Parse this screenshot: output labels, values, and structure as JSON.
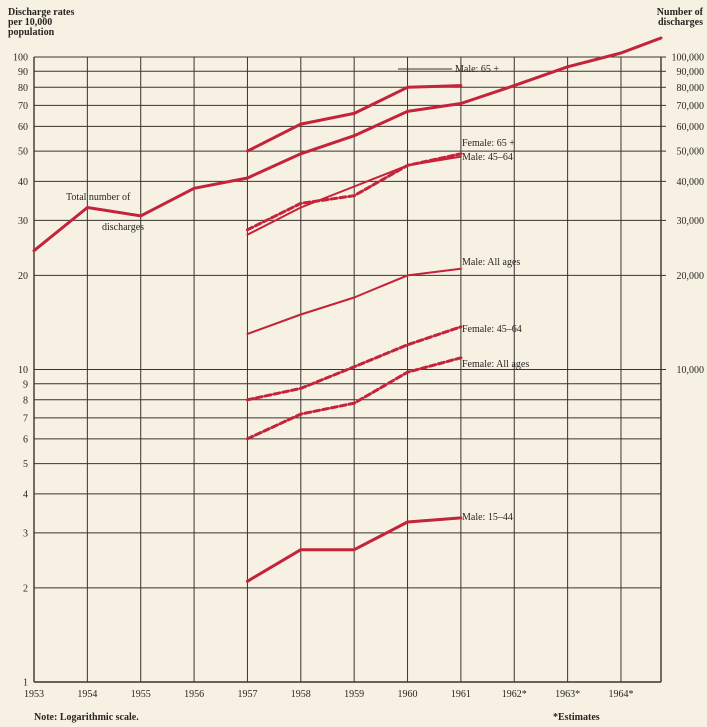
{
  "header": {
    "left_label_lines": [
      "Discharge rates",
      "per 10,000",
      "population"
    ],
    "right_label_lines": [
      "Number of",
      "discharges"
    ]
  },
  "notes": {
    "log_note": "Note:  Logarithmic scale.",
    "estimates_note": "*Estimates"
  },
  "colors": {
    "series": "#c4233a",
    "grid": "#3a3330",
    "background": "#f6f1e2"
  },
  "chart_data": {
    "type": "line",
    "log_scale": true,
    "grid": true,
    "xlim": [
      1953,
      1964.75
    ],
    "x_ticks": [
      1953,
      1954,
      1955,
      1956,
      1957,
      1958,
      1959,
      1960,
      1961,
      1962,
      1963,
      1964
    ],
    "x_tick_labels": [
      "1953",
      "1954",
      "1955",
      "1956",
      "1957",
      "1958",
      "1959",
      "1960",
      "1961",
      "1962*",
      "1963*",
      "1964*"
    ],
    "left_axis": {
      "ylim": [
        1,
        100
      ],
      "ticks": [
        1,
        2,
        3,
        4,
        5,
        6,
        7,
        8,
        9,
        10,
        20,
        30,
        40,
        50,
        60,
        70,
        80,
        90,
        100
      ],
      "labeled_ticks": [
        1,
        2,
        3,
        4,
        5,
        6,
        7,
        8,
        9,
        10,
        20,
        30,
        40,
        50,
        60,
        70,
        80,
        90,
        100
      ]
    },
    "right_axis": {
      "ylim": [
        1000,
        100000
      ],
      "ticks": [
        {
          "value": 10000,
          "label": "10,000"
        },
        {
          "value": 20000,
          "label": "20,000"
        },
        {
          "value": 30000,
          "label": "30,000"
        },
        {
          "value": 40000,
          "label": "40,000"
        },
        {
          "value": 50000,
          "label": "50,000"
        },
        {
          "value": 60000,
          "label": "60,000"
        },
        {
          "value": 70000,
          "label": "70,000"
        },
        {
          "value": 80000,
          "label": "80,000"
        },
        {
          "value": 90000,
          "label": "90,000"
        },
        {
          "value": 100000,
          "label": "100,000"
        }
      ]
    },
    "series": [
      {
        "name": "Total number of discharges",
        "axis": "right",
        "style": "solid",
        "width": 3,
        "x": [
          1953,
          1954,
          1955,
          1956,
          1957,
          1958,
          1959,
          1960,
          1961,
          1962,
          1963,
          1964,
          1964.75
        ],
        "values": [
          24000,
          33000,
          31000,
          38000,
          41000,
          49000,
          56000,
          67000,
          71000,
          81000,
          93000,
          103000,
          115000
        ]
      },
      {
        "name": "Male: 65+",
        "axis": "left",
        "style": "solid",
        "width": 3,
        "x": [
          1957,
          1958,
          1959,
          1960,
          1961
        ],
        "values": [
          50,
          61,
          66,
          80,
          81
        ]
      },
      {
        "name": "Female: 65+",
        "axis": "left",
        "style": "dashed",
        "width": 3,
        "x": [
          1957,
          1958,
          1959,
          1960,
          1961
        ],
        "values": [
          28,
          34,
          36,
          45,
          49
        ]
      },
      {
        "name": "Male: 45-64",
        "axis": "left",
        "style": "solid",
        "width": 2,
        "x": [
          1957,
          1958,
          1959,
          1960,
          1961
        ],
        "values": [
          27,
          33,
          38.5,
          45,
          48
        ]
      },
      {
        "name": "Male: All ages",
        "axis": "left",
        "style": "solid",
        "width": 2,
        "x": [
          1957,
          1958,
          1959,
          1960,
          1961
        ],
        "values": [
          13,
          15,
          17,
          20,
          21
        ]
      },
      {
        "name": "Female: 45-64",
        "axis": "left",
        "style": "dashed",
        "width": 3,
        "x": [
          1957,
          1958,
          1959,
          1960,
          1961
        ],
        "values": [
          8,
          8.7,
          10.2,
          12,
          13.7
        ]
      },
      {
        "name": "Female: All ages",
        "axis": "left",
        "style": "dashed",
        "width": 3,
        "x": [
          1957,
          1958,
          1959,
          1960,
          1961
        ],
        "values": [
          6,
          7.2,
          7.8,
          9.8,
          10.9
        ]
      },
      {
        "name": "Male: 15-44",
        "axis": "left",
        "style": "solid",
        "width": 3,
        "x": [
          1957,
          1958,
          1959,
          1960,
          1961
        ],
        "values": [
          2.1,
          2.65,
          2.65,
          3.25,
          3.35
        ]
      }
    ],
    "annotations": [
      {
        "text": "Male: 65 +",
        "series": "Male: 65+"
      },
      {
        "text": "Female: 65 +",
        "series": "Female: 65+"
      },
      {
        "text": "Male: 45–64",
        "series": "Male: 45-64"
      },
      {
        "text": "Total number of",
        "series": "Total number of discharges"
      },
      {
        "text": "discharges",
        "series": "Total number of discharges"
      },
      {
        "text": "Male: All ages",
        "series": "Male: All ages"
      },
      {
        "text": "Female: 45–64",
        "series": "Female: 45-64"
      },
      {
        "text": "Female: All ages",
        "series": "Female: All ages"
      },
      {
        "text": "Male: 15–44",
        "series": "Male: 15-44"
      }
    ]
  }
}
